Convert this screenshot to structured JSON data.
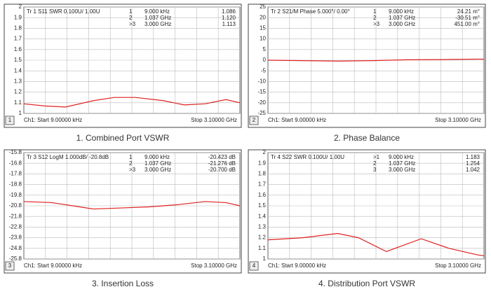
{
  "chart_data": [
    {
      "type": "line",
      "title": "Tr 1  S11 SWR 0.100U/ 1.00U",
      "channel": "1",
      "markers": [
        [
          "1",
          "9.000 kHz",
          "1.086"
        ],
        [
          "2",
          "1.037 GHz",
          "1.120"
        ],
        [
          ">3",
          "3.000 GHz",
          "1.113"
        ]
      ],
      "x": [
        0,
        0.3,
        0.6,
        1.0,
        1.3,
        1.6,
        2.0,
        2.3,
        2.6,
        2.9,
        3.1
      ],
      "series": [
        {
          "color": "#e02020",
          "values": [
            1.09,
            1.07,
            1.06,
            1.12,
            1.15,
            1.15,
            1.12,
            1.08,
            1.09,
            1.13,
            1.1
          ]
        }
      ],
      "xlim": [
        0,
        3.1
      ],
      "ylim": [
        1,
        2
      ],
      "yticks": [
        2,
        1.9,
        1.8,
        1.7,
        1.6,
        1.5,
        1.4,
        1.3,
        1.2,
        1.1,
        1
      ],
      "footer_start": "Ch1: Start  9.00000 kHz",
      "footer_stop": "Stop 3.10000 GHz",
      "caption": "1. Combined Port VSWR"
    },
    {
      "type": "line",
      "title": "Tr 2  S21/M Phase 5.000°/ 0.00°",
      "channel": "2",
      "markers": [
        [
          "1",
          "9.000 kHz",
          "24.21 m°"
        ],
        [
          "2",
          "1.037 GHz",
          "-30.51 m°"
        ],
        [
          ">3",
          "3.000 GHz",
          "451.00 m°"
        ]
      ],
      "x": [
        0,
        0.5,
        1.0,
        1.5,
        2.0,
        2.5,
        3.0,
        3.1
      ],
      "series": [
        {
          "color": "#e02020",
          "values": [
            0,
            -0.2,
            -0.4,
            -0.2,
            0.2,
            0.3,
            0.5,
            0.5
          ]
        }
      ],
      "xlim": [
        0,
        3.1
      ],
      "ylim": [
        -25,
        25
      ],
      "yticks": [
        25,
        20,
        15,
        10,
        5,
        0,
        -5,
        -10,
        -15,
        -20,
        -25
      ],
      "footer_start": "Ch1: Start  9.00000 kHz",
      "footer_stop": "Stop 3.10000 GHz",
      "caption": "2. Phase Balance"
    },
    {
      "type": "line",
      "title": "Tr 3  S12 LogM 1.000dB/ -20.8dB",
      "channel": "3",
      "markers": [
        [
          "1",
          "9.000 kHz",
          "-20.423 dB"
        ],
        [
          "2",
          "1.037 GHz",
          "-21.276 dB"
        ],
        [
          ">3",
          "3.000 GHz",
          "-20.700 dB"
        ]
      ],
      "x": [
        0,
        0.4,
        0.8,
        1.0,
        1.4,
        1.8,
        2.2,
        2.6,
        2.9,
        3.1
      ],
      "series": [
        {
          "color": "#e02020",
          "values": [
            -20.4,
            -20.5,
            -20.9,
            -21.1,
            -21.0,
            -20.9,
            -20.7,
            -20.4,
            -20.5,
            -20.8
          ]
        }
      ],
      "xlim": [
        0,
        3.1
      ],
      "ylim": [
        -25.8,
        -15.8
      ],
      "yticks": [
        -15.8,
        -16.8,
        -17.8,
        -18.8,
        -19.8,
        -20.8,
        -21.8,
        -22.8,
        -23.8,
        -24.8,
        -25.8
      ],
      "footer_start": "Ch1: Start  9.00000 kHz",
      "footer_stop": "Stop 3.10000 GHz",
      "caption": "3.   Insertion Loss"
    },
    {
      "type": "line",
      "title": "Tr 4  S22 SWR 0.100U/ 1.00U",
      "channel": "4",
      "markers": [
        [
          ">1",
          "9.000 kHz",
          "1.183"
        ],
        [
          "2",
          "1.037 GHz",
          "1.254"
        ],
        [
          "3",
          "3.000 GHz",
          "1.042"
        ]
      ],
      "x": [
        0,
        0.5,
        1.0,
        1.3,
        1.7,
        2.2,
        2.6,
        3.0,
        3.1
      ],
      "series": [
        {
          "color": "#e02020",
          "values": [
            1.18,
            1.2,
            1.24,
            1.2,
            1.07,
            1.19,
            1.1,
            1.04,
            1.03
          ]
        }
      ],
      "xlim": [
        0,
        3.1
      ],
      "ylim": [
        1,
        2
      ],
      "yticks": [
        2,
        1.9,
        1.8,
        1.7,
        1.6,
        1.5,
        1.4,
        1.3,
        1.2,
        1.1,
        1
      ],
      "footer_start": "Ch1: Start  9.00000 kHz",
      "footer_stop": "Stop 3.10000 GHz",
      "caption": "4. Distribution  Port VSWR"
    }
  ]
}
